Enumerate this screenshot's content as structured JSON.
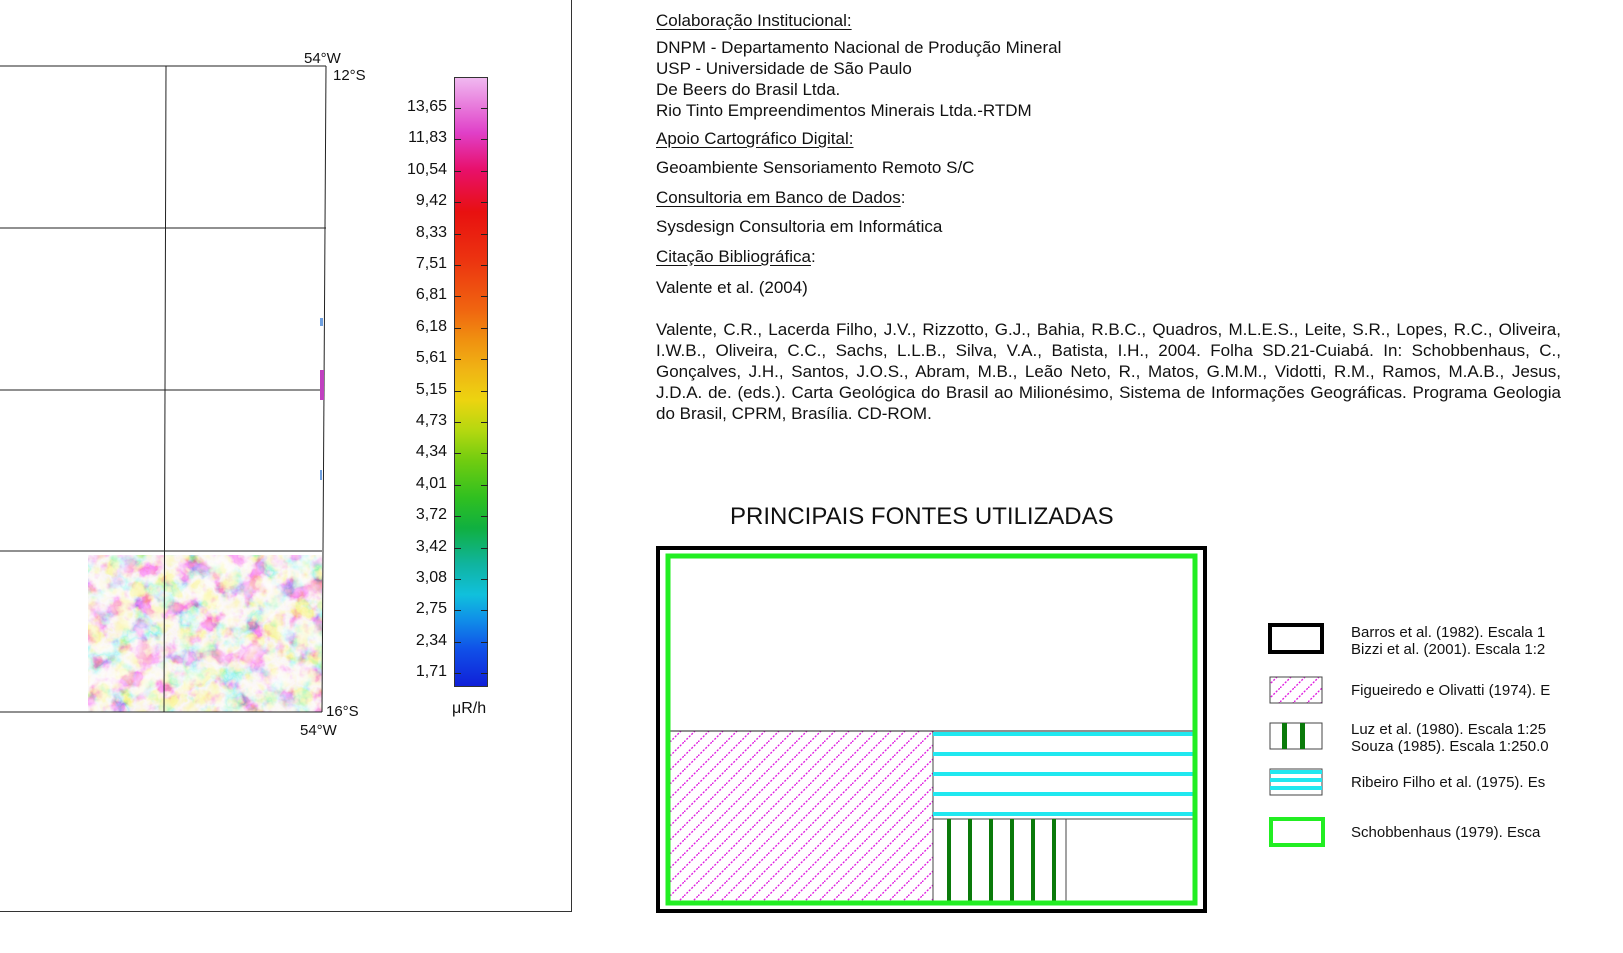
{
  "map": {
    "coords": {
      "top_lon": "54°W",
      "top_lat": "12°S",
      "bottom_lat": "16°S",
      "bottom_lon": "54°W"
    }
  },
  "color_scale": {
    "labels": [
      "13,65",
      "11,83",
      "10,54",
      "9,42",
      "8,33",
      "7,51",
      "6,81",
      "6,18",
      "5,61",
      "5,15",
      "4,73",
      "4,34",
      "4,01",
      "3,72",
      "3,42",
      "3,08",
      "2,75",
      "2,34",
      "1,71"
    ],
    "unit": "μR/h",
    "colors": [
      "#f0a8ec",
      "#e040c8",
      "#e8106c",
      "#e81010",
      "#ec3410",
      "#f06410",
      "#f09010",
      "#f0b414",
      "#ecd410",
      "#b4d810",
      "#70cc10",
      "#30c020",
      "#10b040",
      "#10b4a0",
      "#10c0dc",
      "#1090e8",
      "#1050e8",
      "#1020d8"
    ]
  },
  "credits": {
    "colab_heading": "Colaboração Institucional:",
    "colab_lines": [
      "DNPM - Departamento Nacional de Produção Mineral",
      "USP - Universidade de São Paulo",
      "De Beers do Brasil Ltda.",
      "Rio Tinto Empreendimentos Minerais Ltda.-RTDM"
    ],
    "apoio_heading": "Apoio Cartográfico Digital:",
    "apoio_text": "Geoambiente Sensoriamento Remoto S/C",
    "consult_heading": "Consultoria em Banco de Dados",
    "consult_colon": ":",
    "consult_text": "Sysdesign Consultoria em Informática",
    "citacao_heading": "Citação Bibliográfica",
    "citacao_colon": ":",
    "citacao_short": "Valente et al. (2004)",
    "citation": "Valente, C.R., Lacerda Filho, J.V., Rizzotto, G.J., Bahia, R.B.C., Quadros, M.L.E.S., Leite, S.R., Lopes, R.C., Oliveira, I.W.B., Oliveira, C.C., Sachs, L.L.B., Silva, V.A., Batista, I.H., 2004. Folha SD.21-Cuiabá. In: Schobbenhaus, C., Gonçalves, J.H., Santos, J.O.S., Abram, M.B., Leão Neto, R., Matos, G.M.M., Vidotti, R.M., Ramos, M.A.B., Jesus, J.D.A. de. (eds.). Carta Geológica do Brasil ao Milionésimo, Sistema de Informações Geográficas. Programa Geologia do Brasil, CPRM, Brasília. CD-ROM."
  },
  "sources": {
    "title": "PRINCIPAIS FONTES UTILIZADAS",
    "legend": [
      {
        "line1": "Barros et al. (1982). Escala 1",
        "line2": "Bizzi et al. (2001). Escala 1:2"
      },
      {
        "line1": "Figueiredo e Olivatti (1974). E",
        "line2": ""
      },
      {
        "line1": "Luz et al. (1980). Escala 1:25",
        "line2": "Souza (1985). Escala 1:250.0"
      },
      {
        "line1": "Ribeiro Filho et al. (1975). Es",
        "line2": ""
      },
      {
        "line1": "Schobbenhaus  (1979). Esca",
        "line2": ""
      }
    ],
    "colors": {
      "green": "#22ee22",
      "dark_green": "#0a7a0a",
      "magenta": "#e020e0",
      "cyan": "#20e8f0"
    }
  }
}
